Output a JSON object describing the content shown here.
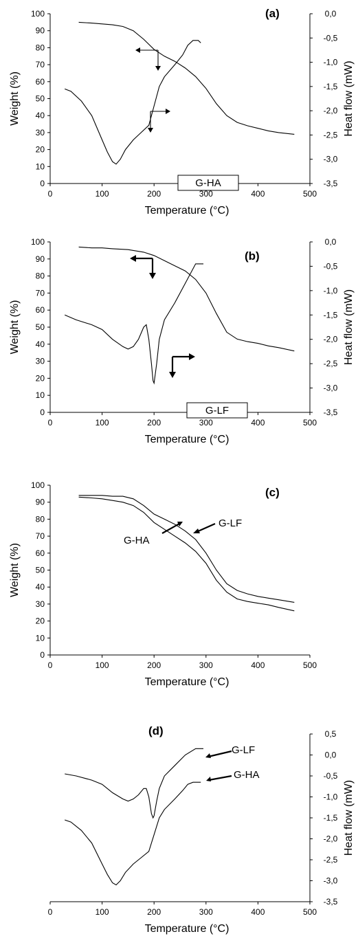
{
  "chart_data": [
    {
      "panel_label": "(a)",
      "type": "line",
      "xlabel": "Temperature (°C)",
      "ylabel": "Weight (%)",
      "y2label": "Heat flow (mW)",
      "xlim": [
        0,
        500
      ],
      "ylim": [
        0,
        100
      ],
      "y2lim": [
        -3.5,
        0.0
      ],
      "x_ticks": [
        "0",
        "100",
        "200",
        "300",
        "400",
        "500"
      ],
      "y_ticks": [
        "0",
        "10",
        "20",
        "30",
        "40",
        "50",
        "60",
        "70",
        "80",
        "90",
        "100"
      ],
      "y2_ticks": [
        "0,0",
        "-0,5",
        "-1,0",
        "-1,5",
        "-2,0",
        "-2,5",
        "-3,0",
        "-3,5"
      ],
      "annotation": "G-HA",
      "series": [
        {
          "axis": "left",
          "x": [
            55,
            80,
            100,
            120,
            140,
            160,
            180,
            200,
            220,
            240,
            260,
            280,
            300,
            320,
            340,
            360,
            380,
            400,
            420,
            440,
            470
          ],
          "values": [
            95,
            94.5,
            94,
            93.5,
            92.5,
            90,
            85,
            79,
            75,
            72,
            68,
            63,
            56,
            47,
            40,
            36,
            34,
            32.5,
            31,
            30,
            29
          ]
        },
        {
          "axis": "right",
          "x": [
            28,
            40,
            60,
            80,
            100,
            110,
            120,
            127,
            135,
            145,
            160,
            175,
            190,
            200,
            210,
            220,
            240,
            255,
            265,
            275,
            285,
            290
          ],
          "values": [
            -1.55,
            -1.6,
            -1.8,
            -2.1,
            -2.6,
            -2.85,
            -3.05,
            -3.1,
            -3.0,
            -2.8,
            -2.6,
            -2.45,
            -2.3,
            -1.9,
            -1.5,
            -1.3,
            -1.05,
            -0.85,
            -0.65,
            -0.55,
            -0.55,
            -0.6
          ]
        }
      ]
    },
    {
      "panel_label": "(b)",
      "type": "line",
      "xlabel": "Temperature (°C)",
      "ylabel": "Weight (%)",
      "y2label": "Heat flow (mW)",
      "xlim": [
        0,
        500
      ],
      "ylim": [
        0,
        100
      ],
      "y2lim": [
        -3.5,
        0.0
      ],
      "x_ticks": [
        "0",
        "100",
        "200",
        "300",
        "400",
        "500"
      ],
      "y_ticks": [
        "0",
        "10",
        "20",
        "30",
        "40",
        "50",
        "60",
        "70",
        "80",
        "90",
        "100"
      ],
      "y2_ticks": [
        "0,0",
        "-0,5",
        "-1,0",
        "-1,5",
        "-2,0",
        "-2,5",
        "-3,0",
        "-3,5"
      ],
      "annotation": "G-LF",
      "series": [
        {
          "axis": "left",
          "x": [
            55,
            80,
            100,
            120,
            150,
            180,
            200,
            220,
            240,
            260,
            280,
            300,
            320,
            340,
            360,
            380,
            400,
            420,
            440,
            470
          ],
          "values": [
            97,
            96.5,
            96.5,
            96,
            95.5,
            94,
            92,
            89,
            86,
            83,
            78,
            70,
            58,
            47,
            43,
            41.5,
            40.5,
            39,
            38,
            36
          ]
        },
        {
          "axis": "right",
          "x": [
            28,
            50,
            80,
            100,
            120,
            140,
            150,
            160,
            170,
            180,
            185,
            190,
            195,
            198,
            200,
            205,
            210,
            220,
            240,
            260,
            280,
            295
          ],
          "values": [
            -1.5,
            -1.6,
            -1.7,
            -1.8,
            -2.0,
            -2.15,
            -2.2,
            -2.15,
            -2.0,
            -1.75,
            -1.7,
            -2.0,
            -2.5,
            -2.85,
            -2.9,
            -2.5,
            -2.0,
            -1.6,
            -1.25,
            -0.85,
            -0.45,
            -0.45
          ]
        }
      ]
    },
    {
      "panel_label": "(c)",
      "type": "line",
      "xlabel": "Temperature (°C)",
      "ylabel": "Weight (%)",
      "xlim": [
        0,
        500
      ],
      "ylim": [
        0,
        100
      ],
      "x_ticks": [
        "0",
        "100",
        "200",
        "300",
        "400",
        "500"
      ],
      "y_ticks": [
        "0",
        "10",
        "20",
        "30",
        "40",
        "50",
        "60",
        "70",
        "80",
        "90",
        "100"
      ],
      "series": [
        {
          "name": "G-LF",
          "x": [
            55,
            80,
            100,
            120,
            140,
            160,
            180,
            200,
            220,
            240,
            260,
            280,
            300,
            320,
            340,
            360,
            380,
            400,
            420,
            440,
            470
          ],
          "values": [
            94,
            94,
            94,
            93.5,
            93.5,
            92,
            88,
            83,
            80,
            77,
            73,
            68,
            60,
            50,
            42,
            38,
            36,
            34.5,
            33.5,
            32.5,
            31
          ]
        },
        {
          "name": "G-HA",
          "x": [
            55,
            80,
            100,
            120,
            140,
            160,
            180,
            200,
            220,
            240,
            260,
            280,
            300,
            320,
            340,
            360,
            380,
            400,
            420,
            440,
            470
          ],
          "values": [
            93,
            92.5,
            92,
            91,
            90,
            88,
            84,
            78,
            74,
            70,
            66,
            61,
            54,
            44,
            37,
            33,
            31.5,
            30.5,
            29.5,
            28,
            26
          ]
        }
      ]
    },
    {
      "panel_label": "(d)",
      "type": "line",
      "xlabel": "Temperature (°C)",
      "y2label": "Heat flow (mW)",
      "xlim": [
        0,
        500
      ],
      "y2lim": [
        -3.5,
        0.5
      ],
      "x_ticks": [
        "0",
        "100",
        "200",
        "300",
        "400",
        "500"
      ],
      "y2_ticks": [
        "0,5",
        "0,0",
        "-0,5",
        "-1,0",
        "-1,5",
        "-2,0",
        "-2,5",
        "-3,0",
        "-3,5"
      ],
      "series": [
        {
          "name": "G-LF",
          "x": [
            28,
            50,
            80,
            100,
            120,
            140,
            150,
            160,
            170,
            180,
            185,
            190,
            195,
            198,
            200,
            205,
            210,
            220,
            240,
            260,
            280,
            295
          ],
          "values": [
            -0.45,
            -0.5,
            -0.6,
            -0.7,
            -0.9,
            -1.05,
            -1.1,
            -1.05,
            -0.95,
            -0.8,
            -0.8,
            -1.0,
            -1.4,
            -1.5,
            -1.45,
            -1.1,
            -0.8,
            -0.5,
            -0.25,
            0.0,
            0.15,
            0.15
          ]
        },
        {
          "name": "G-HA",
          "x": [
            28,
            40,
            60,
            80,
            100,
            110,
            120,
            127,
            135,
            145,
            160,
            175,
            190,
            200,
            210,
            220,
            240,
            255,
            265,
            275,
            285,
            290
          ],
          "values": [
            -1.55,
            -1.6,
            -1.8,
            -2.1,
            -2.6,
            -2.85,
            -3.05,
            -3.1,
            -3.0,
            -2.8,
            -2.6,
            -2.45,
            -2.3,
            -1.9,
            -1.5,
            -1.3,
            -1.05,
            -0.85,
            -0.7,
            -0.65,
            -0.65,
            -0.65
          ]
        }
      ]
    }
  ]
}
